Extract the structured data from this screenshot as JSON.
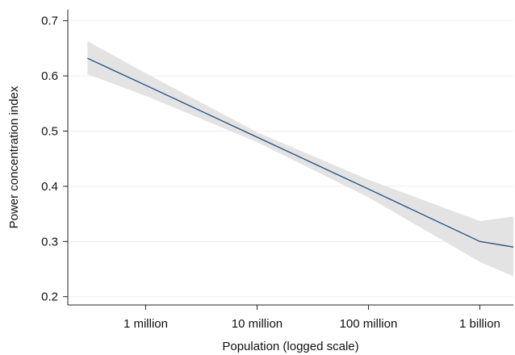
{
  "chart_data": {
    "type": "line",
    "xlabel": "Population (logged scale)",
    "ylabel": "Power concentration index",
    "x_scale": "log",
    "xlim": [
      200000,
      2000000000
    ],
    "ylim": [
      0.185,
      0.72
    ],
    "y_ticks": [
      0.2,
      0.3,
      0.4,
      0.5,
      0.6,
      0.7
    ],
    "y_tick_labels": [
      "0.2",
      "0.3",
      "0.4",
      "0.5",
      "0.6",
      "0.7"
    ],
    "x_ticks": [
      1000000,
      10000000,
      100000000,
      1000000000
    ],
    "x_tick_labels": [
      "1 million",
      "10 million",
      "100 million",
      "1 billion"
    ],
    "grid": true,
    "legend": "none",
    "series": [
      {
        "x": [
          300000,
          1000000,
          10000000,
          100000000,
          1000000000,
          2000000000
        ],
        "y": [
          0.632,
          0.583,
          0.489,
          0.395,
          0.3,
          0.29
        ],
        "ci_lower": [
          0.603,
          0.564,
          0.48,
          0.38,
          0.263,
          0.237
        ],
        "ci_upper": [
          0.663,
          0.605,
          0.498,
          0.412,
          0.337,
          0.345
        ]
      }
    ],
    "colors": {
      "line": "#1f4e79",
      "band": "#e3e3e3",
      "grid": "#ededed",
      "axis": "#222222"
    }
  }
}
